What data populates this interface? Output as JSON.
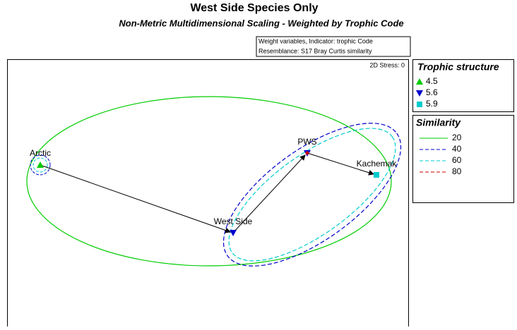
{
  "title": "West Side Species Only",
  "subtitle": "Non-Metric Multidimensional Scaling - Weighted by Trophic Code",
  "info": [
    "Weight variables, Indicator: trophic Code",
    "Resemblance: S17 Bray Curtis similarity"
  ],
  "stress": "2D Stress: 0",
  "points": [
    {
      "label": "Arctic"
    },
    {
      "label": "West Side"
    },
    {
      "label": "PWS"
    },
    {
      "label": "Kachemak"
    }
  ],
  "legend_trophic": {
    "title": "Trophic structure",
    "items": [
      "4.5",
      "5.6",
      "5.9"
    ]
  },
  "legend_similarity": {
    "title": "Similarity",
    "items": [
      "20",
      "40",
      "60",
      "80"
    ]
  }
}
